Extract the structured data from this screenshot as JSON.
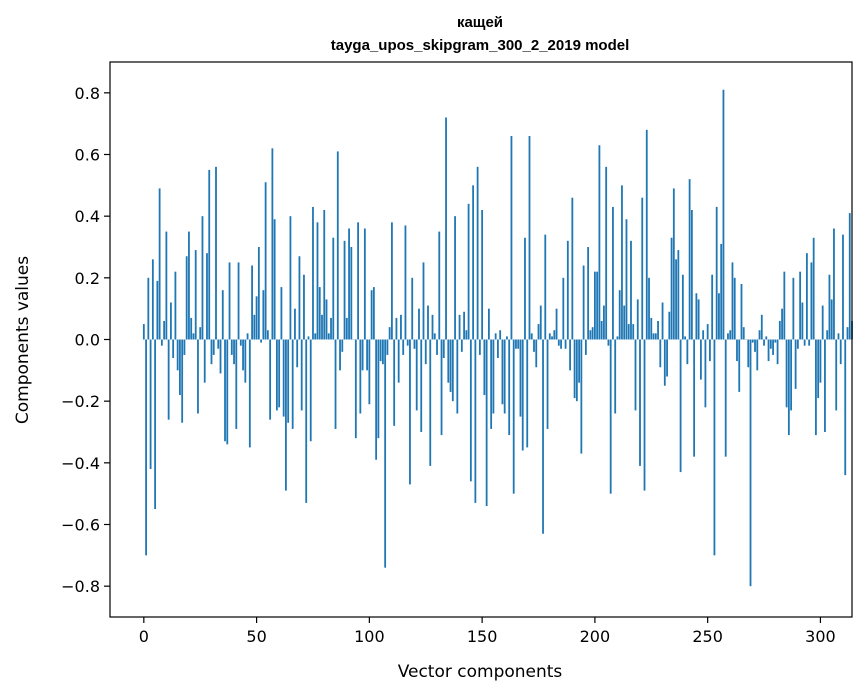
{
  "chart_data": {
    "type": "bar",
    "title": "кащей",
    "subtitle": "tayga_upos_skipgram_300_2_2019 model",
    "xlabel": "Vector components",
    "ylabel": "Components values",
    "xlim": [
      -15,
      314
    ],
    "ylim": [
      -0.9,
      0.9
    ],
    "x_ticks": [
      0,
      50,
      100,
      150,
      200,
      250,
      300
    ],
    "y_ticks": [
      -0.8,
      -0.6,
      -0.4,
      -0.2,
      0.0,
      0.2,
      0.4,
      0.6,
      0.8
    ],
    "y_tick_labels": [
      "−0.8",
      "−0.6",
      "−0.4",
      "−0.2",
      "0.0",
      "0.2",
      "0.4",
      "0.6",
      "0.8"
    ],
    "bar_color": "#1f77b4",
    "grid": false,
    "values": [
      0.05,
      -0.7,
      0.2,
      -0.42,
      0.26,
      -0.55,
      0.19,
      0.49,
      -0.02,
      0.06,
      0.35,
      -0.26,
      0.12,
      -0.06,
      0.22,
      -0.1,
      -0.18,
      -0.27,
      -0.05,
      0.27,
      0.35,
      0.07,
      0.02,
      0.29,
      -0.24,
      0.04,
      0.4,
      -0.14,
      0.28,
      0.55,
      -0.08,
      -0.05,
      0.56,
      -0.03,
      -0.11,
      0.16,
      -0.33,
      -0.34,
      0.25,
      -0.05,
      -0.08,
      -0.29,
      0.25,
      -0.02,
      -0.1,
      -0.14,
      0.02,
      -0.35,
      0.24,
      0.08,
      0.14,
      0.3,
      -0.01,
      0.16,
      0.51,
      0.03,
      -0.26,
      0.62,
      0.39,
      -0.23,
      -0.22,
      0.17,
      -0.25,
      -0.49,
      -0.27,
      0.4,
      -0.29,
      0.1,
      -0.09,
      0.27,
      -0.23,
      0.21,
      -0.53,
      0.01,
      -0.33,
      0.43,
      0.02,
      0.38,
      0.17,
      0.08,
      0.42,
      0.13,
      0.02,
      0.07,
      0.33,
      -0.29,
      0.61,
      -0.1,
      -0.04,
      0.32,
      0.07,
      0.36,
      0.3,
      0.0,
      -0.32,
      0.38,
      -0.24,
      -0.1,
      0.36,
      -0.1,
      -0.21,
      0.16,
      0.17,
      -0.39,
      -0.32,
      -0.07,
      -0.08,
      -0.74,
      -0.05,
      0.04,
      0.38,
      -0.28,
      0.07,
      -0.14,
      0.08,
      -0.05,
      0.37,
      -0.02,
      -0.47,
      0.2,
      -0.03,
      -0.23,
      0.1,
      -0.3,
      0.25,
      -0.08,
      0.11,
      -0.41,
      0.08,
      0.02,
      -0.05,
      0.35,
      -0.31,
      -0.06,
      0.72,
      -0.14,
      -0.17,
      -0.2,
      0.4,
      -0.24,
      0.08,
      -0.04,
      0.09,
      0.03,
      0.44,
      -0.46,
      0.5,
      -0.53,
      0.56,
      -0.05,
      0.42,
      -0.18,
      -0.54,
      0.1,
      -0.29,
      -0.24,
      0.02,
      -0.06,
      0.03,
      -0.21,
      -0.24,
      0.01,
      -0.31,
      0.66,
      -0.5,
      -0.03,
      -0.03,
      -0.25,
      -0.36,
      0.33,
      -0.35,
      0.66,
      0.02,
      -0.04,
      -0.09,
      0.05,
      0.11,
      -0.63,
      0.34,
      -0.29,
      0.02,
      0.01,
      0.03,
      0.1,
      -0.02,
      -0.03,
      0.2,
      -0.03,
      0.32,
      -0.1,
      0.46,
      -0.19,
      -0.2,
      -0.14,
      -0.37,
      0.24,
      -0.05,
      0.3,
      0.03,
      0.04,
      0.22,
      0.22,
      0.63,
      0.06,
      0.11,
      0.56,
      -0.02,
      -0.5,
      0.43,
      -0.24,
      0.01,
      0.16,
      0.5,
      0.11,
      0.39,
      0.05,
      0.32,
      0.05,
      -0.23,
      0.13,
      -0.41,
      0.46,
      -0.49,
      0.68,
      0.2,
      0.07,
      0.02,
      0.02,
      0.06,
      -0.09,
      0.12,
      -0.15,
      -0.12,
      0.09,
      0.33,
      0.49,
      0.26,
      0.29,
      -0.43,
      0.21,
      0.01,
      -0.08,
      0.52,
      0.42,
      -0.38,
      0.15,
      0.13,
      -0.13,
      0.03,
      -0.22,
      0.05,
      -0.07,
      0.21,
      -0.7,
      0.43,
      0.15,
      0.31,
      0.81,
      -0.38,
      0.02,
      0.03,
      0.25,
      0.2,
      -0.07,
      -0.17,
      0.18,
      0.04,
      0.0,
      -0.09,
      -0.8,
      -0.01,
      -0.04,
      -0.1,
      0.03,
      0.08,
      -0.02,
      0.01,
      -0.07,
      -0.03,
      -0.05,
      -0.01,
      -0.08,
      0.06,
      0.1,
      0.22,
      -0.22,
      -0.31,
      -0.23,
      0.2,
      -0.16,
      -0.03,
      0.22,
      0.12,
      -0.02,
      0.28,
      -0.02,
      0.25,
      0.33,
      -0.31,
      -0.19,
      -0.14,
      0.11,
      -0.3,
      0.03,
      0.21,
      0.13,
      0.36,
      -0.23,
      0.02,
      -0.08,
      0.34,
      -0.44,
      0.04,
      0.41,
      0.06
    ]
  }
}
